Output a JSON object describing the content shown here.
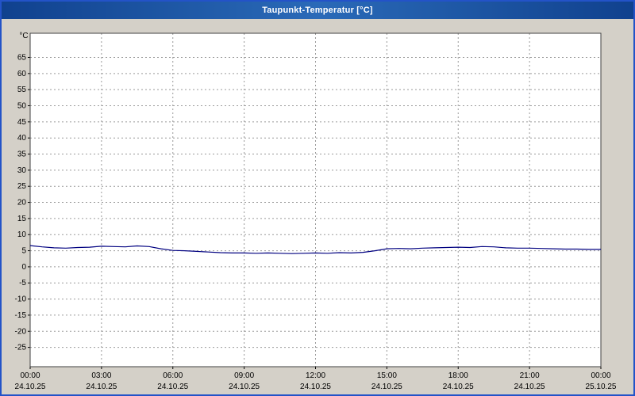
{
  "window": {
    "title": "Taupunkt-Temperatur [°C]"
  },
  "colors": {
    "series_line": "#000080",
    "plot_background": "#ffffff",
    "plot_border": "#404040",
    "gridline": "#9a9a9a",
    "window_background": "#d4d0c8",
    "titlebar_start": "#10418e",
    "titlebar_mid": "#2a6ab8",
    "window_border": "#2353c8",
    "title_text": "#ffffff"
  },
  "chart_data": {
    "type": "line",
    "title": "Taupunkt-Temperatur [°C]",
    "ylabel": "°C",
    "xlabel": "",
    "ylim": [
      -31,
      72.5
    ],
    "ytick_min": -25,
    "ytick_max": 65,
    "ytick_step": 5,
    "grid": "dashed",
    "legend_position": "none",
    "x_ticks": [
      {
        "hour": 0,
        "time": "00:00",
        "date": "24.10.25"
      },
      {
        "hour": 3,
        "time": "03:00",
        "date": "24.10.25"
      },
      {
        "hour": 6,
        "time": "06:00",
        "date": "24.10.25"
      },
      {
        "hour": 9,
        "time": "09:00",
        "date": "24.10.25"
      },
      {
        "hour": 12,
        "time": "12:00",
        "date": "24.10.25"
      },
      {
        "hour": 15,
        "time": "15:00",
        "date": "24.10.25"
      },
      {
        "hour": 18,
        "time": "18:00",
        "date": "24.10.25"
      },
      {
        "hour": 21,
        "time": "21:00",
        "date": "24.10.25"
      },
      {
        "hour": 24,
        "time": "00:00",
        "date": "25.10.25"
      }
    ],
    "series": [
      {
        "name": "Taupunkt-Temperatur",
        "color": "#000080",
        "x_hours": [
          0,
          0.5,
          1,
          1.5,
          2,
          2.5,
          3,
          3.5,
          4,
          4.5,
          5,
          5.5,
          6,
          6.5,
          7,
          7.5,
          8,
          8.5,
          9,
          9.5,
          10,
          10.5,
          11,
          11.5,
          12,
          12.5,
          13,
          13.5,
          14,
          14.5,
          15,
          15.5,
          16,
          16.5,
          17,
          17.5,
          18,
          18.5,
          19,
          19.5,
          20,
          20.5,
          21,
          21.5,
          22,
          22.5,
          23,
          23.5,
          24
        ],
        "values": [
          6.6,
          6.2,
          5.9,
          5.8,
          6.0,
          6.1,
          6.4,
          6.3,
          6.2,
          6.5,
          6.3,
          5.6,
          5.1,
          5.0,
          4.8,
          4.6,
          4.4,
          4.3,
          4.3,
          4.2,
          4.3,
          4.2,
          4.1,
          4.2,
          4.3,
          4.2,
          4.4,
          4.3,
          4.5,
          5.0,
          5.6,
          5.7,
          5.6,
          5.8,
          5.9,
          6.0,
          6.1,
          6.0,
          6.3,
          6.2,
          5.9,
          5.8,
          5.8,
          5.7,
          5.6,
          5.5,
          5.5,
          5.4,
          5.4
        ]
      }
    ]
  }
}
